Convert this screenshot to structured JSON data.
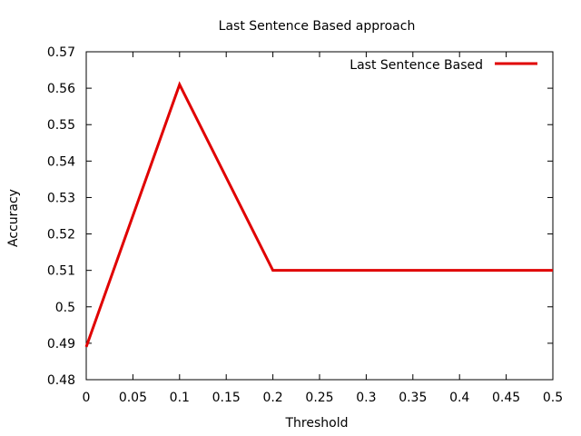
{
  "chart_data": {
    "type": "line",
    "title": "Last Sentence Based approach",
    "xlabel": "Threshold",
    "ylabel": "Accuracy",
    "xlim": [
      0,
      0.5
    ],
    "ylim": [
      0.48,
      0.57
    ],
    "x_ticks": [
      0,
      0.05,
      0.1,
      0.15,
      0.2,
      0.25,
      0.3,
      0.35,
      0.4,
      0.45,
      0.5
    ],
    "x_tick_labels": [
      "0",
      "0.05",
      "0.1",
      "0.15",
      "0.2",
      "0.25",
      "0.3",
      "0.35",
      "0.4",
      "0.45",
      "0.5"
    ],
    "y_ticks": [
      0.48,
      0.49,
      0.5,
      0.51,
      0.52,
      0.53,
      0.54,
      0.55,
      0.56,
      0.57
    ],
    "y_tick_labels": [
      "0.48",
      "0.49",
      "0.5",
      "0.51",
      "0.52",
      "0.53",
      "0.54",
      "0.55",
      "0.56",
      "0.57"
    ],
    "grid": false,
    "legend_position": "top-right",
    "series": [
      {
        "name": "Last Sentence Based",
        "color": "#e00000",
        "x": [
          0,
          0.1,
          0.2,
          0.3,
          0.4,
          0.5
        ],
        "y": [
          0.489,
          0.561,
          0.51,
          0.51,
          0.51,
          0.51
        ]
      }
    ]
  }
}
